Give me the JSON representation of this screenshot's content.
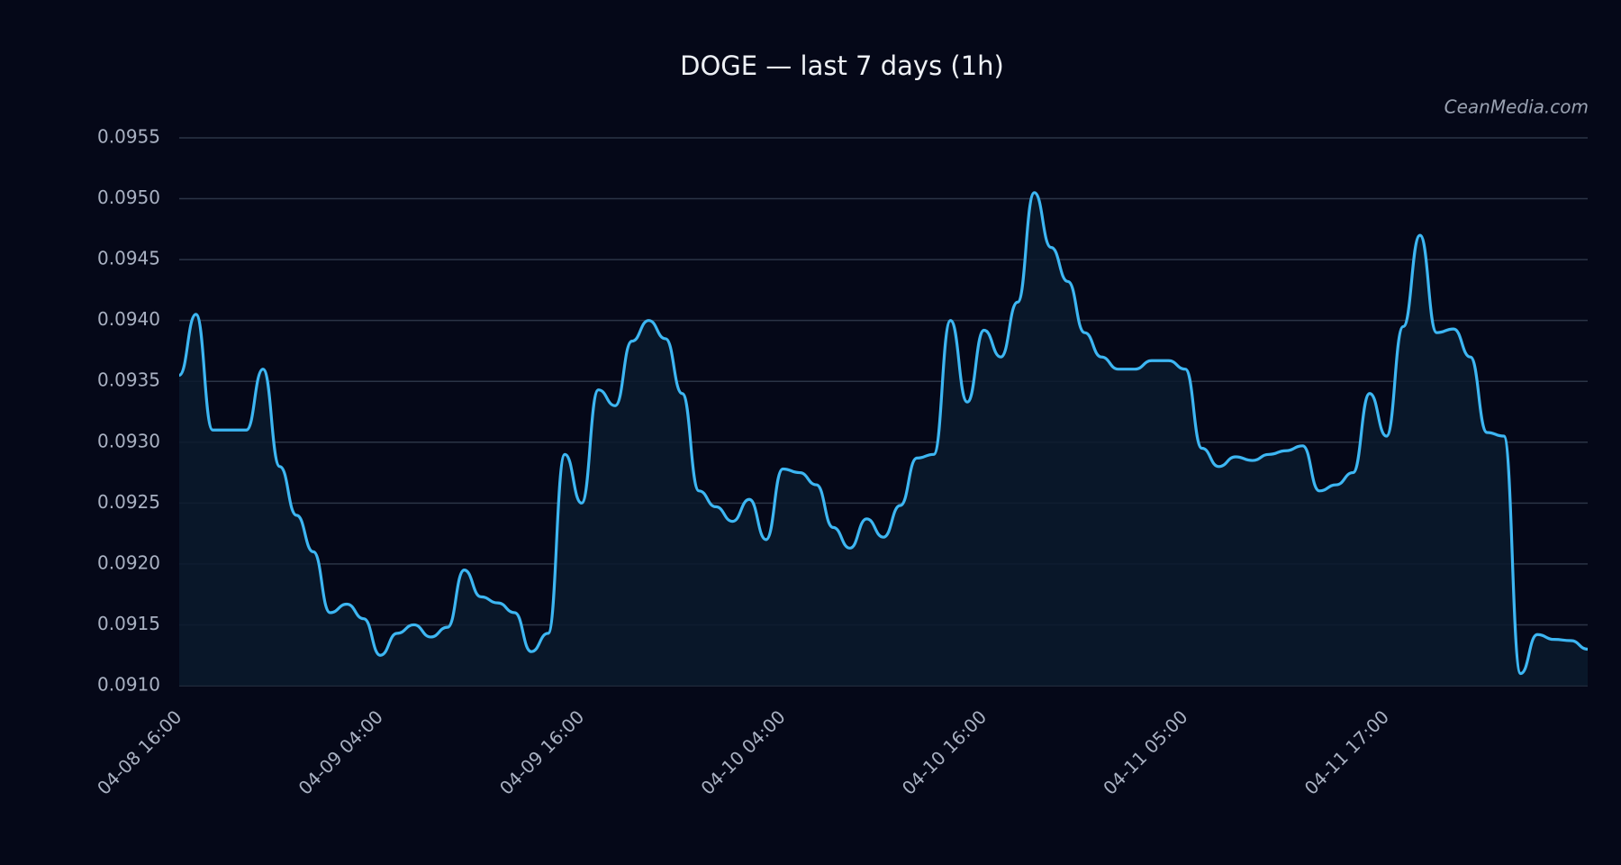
{
  "chart_data": {
    "type": "line",
    "title": "DOGE — last 7 days (1h)",
    "watermark": "CeanMedia.com",
    "categories": [
      "04-08 16:00",
      null,
      null,
      null,
      null,
      null,
      null,
      null,
      null,
      null,
      null,
      null,
      "04-09 04:00",
      null,
      null,
      null,
      null,
      null,
      null,
      null,
      null,
      null,
      null,
      null,
      "04-09 16:00",
      null,
      null,
      null,
      null,
      null,
      null,
      null,
      null,
      null,
      null,
      null,
      "04-10 04:00",
      null,
      null,
      null,
      null,
      null,
      null,
      null,
      null,
      null,
      null,
      null,
      "04-10 16:00",
      null,
      null,
      null,
      null,
      null,
      null,
      null,
      null,
      null,
      null,
      null,
      "04-11 05:00",
      null,
      null,
      null,
      null,
      null,
      null,
      null,
      null,
      null,
      null,
      null,
      "04-11 17:00",
      null,
      null,
      null,
      null,
      null,
      null,
      null,
      null,
      null,
      null,
      null,
      null
    ],
    "values": [
      0.09355,
      0.09405,
      0.0931,
      0.0931,
      0.0931,
      0.0936,
      0.0928,
      0.0924,
      0.0921,
      0.0916,
      0.09167,
      0.09155,
      0.09125,
      0.09143,
      0.0915,
      0.0914,
      0.09148,
      0.09195,
      0.09173,
      0.09168,
      0.0916,
      0.09128,
      0.09143,
      0.0929,
      0.0925,
      0.09343,
      0.0933,
      0.09383,
      0.094,
      0.09385,
      0.0934,
      0.0926,
      0.09247,
      0.09235,
      0.09253,
      0.0922,
      0.09278,
      0.09275,
      0.09265,
      0.0923,
      0.09213,
      0.09237,
      0.09222,
      0.09248,
      0.09287,
      0.0929,
      0.094,
      0.09333,
      0.09392,
      0.0937,
      0.09415,
      0.09505,
      0.0946,
      0.09432,
      0.0939,
      0.0937,
      0.0936,
      0.0936,
      0.09367,
      0.09367,
      0.0936,
      0.09295,
      0.0928,
      0.09288,
      0.09285,
      0.0929,
      0.09293,
      0.09297,
      0.0926,
      0.09265,
      0.09275,
      0.0934,
      0.09305,
      0.09395,
      0.0947,
      0.0939,
      0.09393,
      0.0937,
      0.09308,
      0.09305,
      0.0911,
      0.09142,
      0.09138,
      0.09137,
      0.0913
    ],
    "color": "#3db6f2",
    "ylim": [
      0.091,
      0.0955
    ],
    "yticks": [
      {
        "value": 0.091,
        "label": "0.0910"
      },
      {
        "value": 0.0915,
        "label": "0.0915"
      },
      {
        "value": 0.092,
        "label": "0.0920"
      },
      {
        "value": 0.0925,
        "label": "0.0925"
      },
      {
        "value": 0.093,
        "label": "0.0930"
      },
      {
        "value": 0.0935,
        "label": "0.0935"
      },
      {
        "value": 0.094,
        "label": "0.0940"
      },
      {
        "value": 0.0945,
        "label": "0.0945"
      },
      {
        "value": 0.095,
        "label": "0.0950"
      },
      {
        "value": 0.0955,
        "label": "0.0955"
      }
    ],
    "grid": true
  }
}
